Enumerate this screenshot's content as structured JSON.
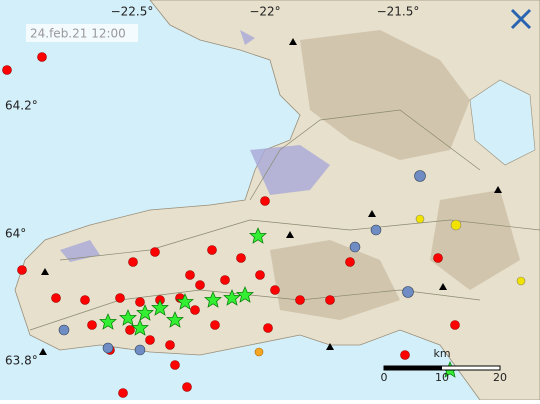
{
  "timestamp": "24.feb.21 12:00",
  "longitude_labels": [
    "−22.5°",
    "−22°",
    "−21.5°"
  ],
  "latitude_labels": [
    "64.2°",
    "64°",
    "63.8°"
  ],
  "scale": {
    "unit": "km",
    "labels": [
      "0",
      "10",
      "20"
    ]
  }
}
